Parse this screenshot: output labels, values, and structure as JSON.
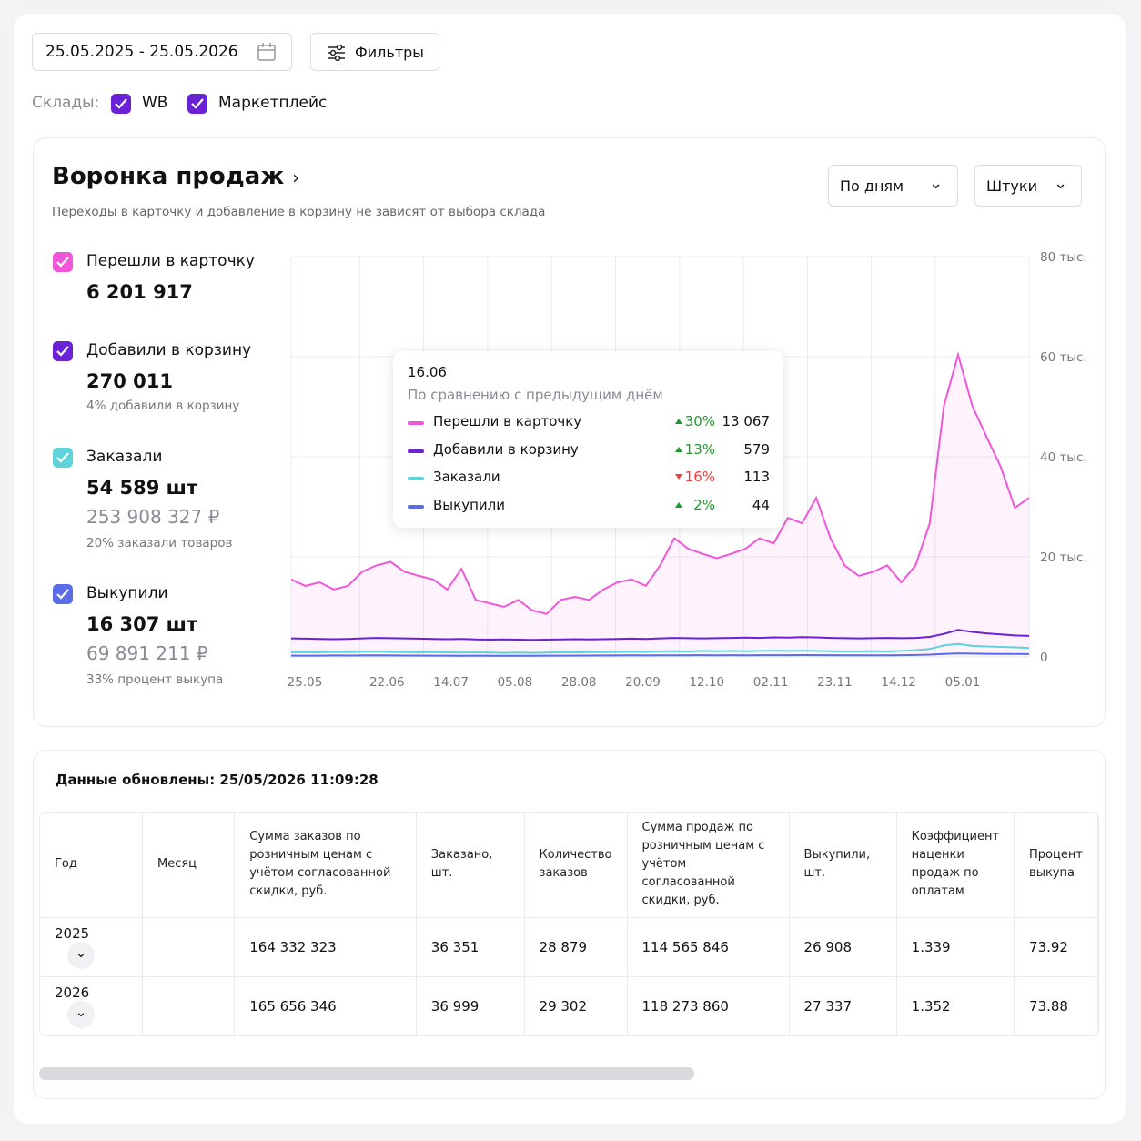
{
  "toolbar": {
    "date_range": "25.05.2025 - 25.05.2026",
    "filters": "Фильтры",
    "warehouses_label": "Склады:",
    "warehouses": [
      "WB",
      "Маркетплейс"
    ]
  },
  "funnel": {
    "title": "Воронка продаж",
    "subtitle": "Переходы в карточку и добавление в корзину не зависят от выбора склада",
    "period": "По дням",
    "units": "Штуки",
    "metrics": [
      {
        "label": "Перешли в карточку",
        "value": "6 201 917",
        "color": "#f056d8"
      },
      {
        "label": "Добавили в корзину",
        "value": "270 011",
        "note": "4% добавили в корзину",
        "color": "#6b21d6"
      },
      {
        "label": "Заказали",
        "value": "54 589 шт",
        "sub": "253 908 327 ₽",
        "note": "20% заказали товаров",
        "color": "#5fd3d9"
      },
      {
        "label": "Выкупили",
        "value": "16 307 шт",
        "sub": "69 891 211 ₽",
        "note": "33% процент выкупа",
        "color": "#5a6ce6"
      }
    ],
    "tooltip": {
      "date": "16.06",
      "subtitle": "По сравнению с предыдущим днём",
      "rows": [
        {
          "name": "Перешли в карточку",
          "change": "30%",
          "direction": "up",
          "value": "13 067",
          "color": "#f056d8"
        },
        {
          "name": "Добавили в корзину",
          "change": "13%",
          "direction": "up",
          "value": "579",
          "color": "#6b21d6"
        },
        {
          "name": "Заказали",
          "change": "16%",
          "direction": "down",
          "value": "113",
          "color": "#5fd3d9"
        },
        {
          "name": "Выкупили",
          "change": "2%",
          "direction": "up",
          "value": "44",
          "color": "#5a6ce6"
        }
      ]
    }
  },
  "chart_data": {
    "type": "line",
    "x_labels": [
      "25.05",
      "22.06",
      "14.07",
      "05.08",
      "28.08",
      "20.09",
      "12.10",
      "02.11",
      "23.11",
      "14.12",
      "05.01"
    ],
    "ylim": [
      0,
      80000
    ],
    "yticks": [
      0,
      {
        "value": 20000,
        "label": "20 тыс."
      },
      {
        "value": 40000,
        "label": "40 тыс."
      },
      {
        "value": 60000,
        "label": "60 тыс."
      },
      {
        "value": 80000,
        "label": "80 тыс."
      }
    ],
    "grid": true,
    "series": [
      {
        "name": "Перешли в карточку",
        "color": "#f056d8",
        "fill": true,
        "values": [
          15500,
          14200,
          14900,
          13500,
          14200,
          17000,
          18300,
          19000,
          17000,
          16200,
          15500,
          13500,
          17600,
          11400,
          10700,
          10000,
          11400,
          9300,
          8600,
          11400,
          12000,
          11400,
          13500,
          14900,
          15500,
          14200,
          18300,
          23700,
          21600,
          20600,
          19700,
          20600,
          21600,
          23700,
          22700,
          27800,
          26700,
          31800,
          23700,
          18300,
          16200,
          17000,
          18300,
          14900,
          18300,
          26700,
          50200,
          60400,
          50200,
          44000,
          38000,
          29800,
          31800
        ]
      },
      {
        "name": "Добавили в корзину",
        "color": "#6b21d6",
        "values": [
          3700,
          3650,
          3600,
          3550,
          3600,
          3700,
          3800,
          3750,
          3700,
          3650,
          3600,
          3550,
          3600,
          3500,
          3450,
          3500,
          3450,
          3400,
          3450,
          3500,
          3550,
          3500,
          3550,
          3600,
          3650,
          3600,
          3700,
          3800,
          3750,
          3700,
          3750,
          3800,
          3850,
          3800,
          3900,
          3850,
          3950,
          3900,
          3800,
          3750,
          3700,
          3750,
          3800,
          3750,
          3800,
          4000,
          4600,
          5400,
          5000,
          4700,
          4500,
          4300,
          4200
        ]
      },
      {
        "name": "Заказали",
        "color": "#5fd3d9",
        "values": [
          900,
          950,
          900,
          1000,
          950,
          1050,
          1100,
          1000,
          950,
          900,
          950,
          900,
          850,
          900,
          850,
          800,
          850,
          800,
          850,
          900,
          900,
          950,
          950,
          1000,
          1050,
          1000,
          1100,
          1150,
          1100,
          1200,
          1150,
          1200,
          1150,
          1200,
          1250,
          1200,
          1250,
          1200,
          1150,
          1100,
          1100,
          1150,
          1100,
          1200,
          1350,
          1600,
          2300,
          2600,
          2200,
          2100,
          2000,
          1900,
          1800
        ]
      },
      {
        "name": "Выкупили",
        "color": "#5a6ce6",
        "values": [
          250,
          260,
          250,
          300,
          280,
          300,
          320,
          300,
          280,
          270,
          260,
          250,
          240,
          250,
          240,
          230,
          240,
          230,
          250,
          260,
          270,
          280,
          290,
          300,
          310,
          300,
          320,
          330,
          320,
          340,
          330,
          340,
          330,
          340,
          350,
          340,
          360,
          350,
          340,
          330,
          320,
          330,
          320,
          340,
          380,
          450,
          600,
          700,
          650,
          620,
          600,
          580,
          560
        ]
      }
    ]
  },
  "table": {
    "updated": "Данные обновлены: 25/05/2026 11:09:28",
    "headers": [
      "Год",
      "Месяц",
      "Сумма заказов по розничным ценам с учётом согласованной скидки, руб.",
      "Заказано, шт.",
      "Количество заказов",
      "Сумма продаж по розничным ценам с учётом согласованной скидки, руб.",
      "Выкупили, шт.",
      "Коэффициент наценки продаж по оплатам",
      "Процент выкупа"
    ],
    "rows": [
      [
        "2025",
        "",
        "164 332 323",
        "36 351",
        "28 879",
        "114 565 846",
        "26 908",
        "1.339",
        "73.92"
      ],
      [
        "2026",
        "",
        "165 656 346",
        "36 999",
        "29 302",
        "118 273 860",
        "27 337",
        "1.352",
        "73.88"
      ]
    ]
  }
}
